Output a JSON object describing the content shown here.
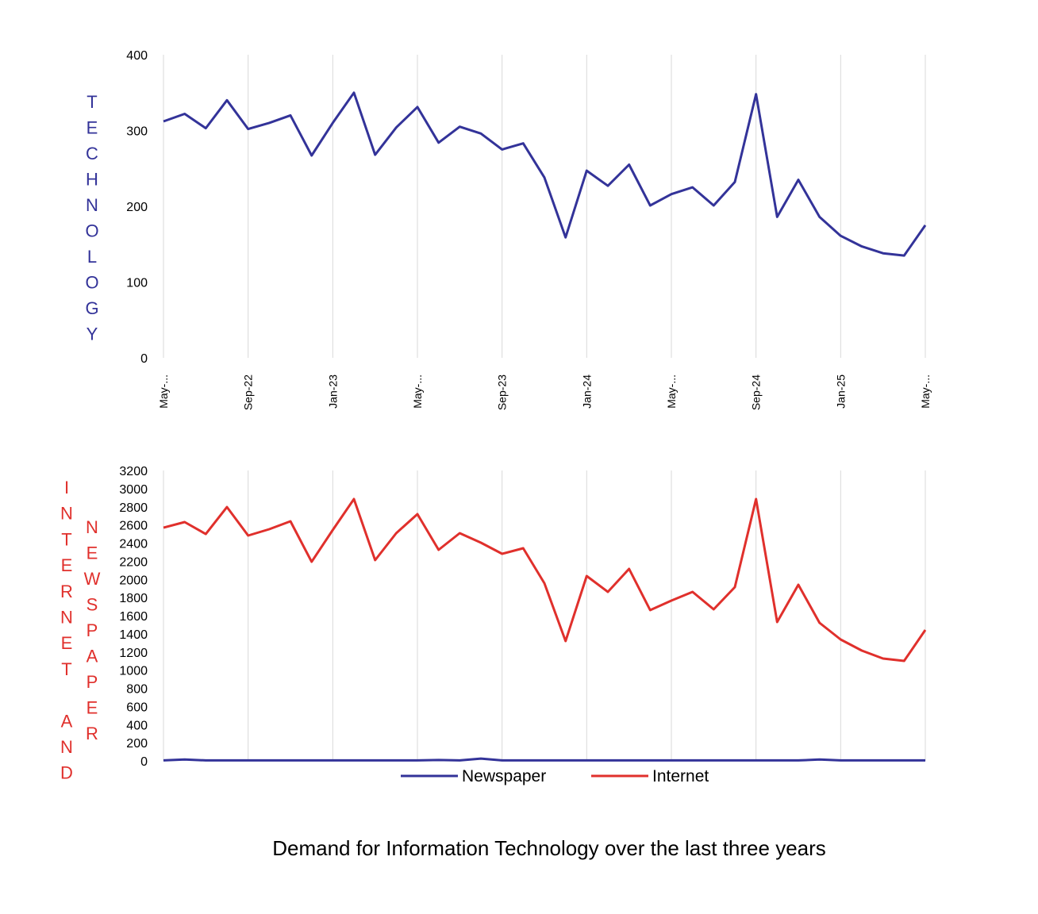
{
  "chart_data": [
    {
      "type": "line",
      "ylabel": "TECHNOLOGY",
      "ylim": [
        0,
        400
      ],
      "yticks": [
        "0",
        "100",
        "200",
        "300",
        "400"
      ],
      "xtick_labels": [
        "May-...",
        "Sep-22",
        "Jan-23",
        "May-...",
        "Sep-23",
        "Jan-24",
        "May-...",
        "Sep-24",
        "Jan-25",
        "May-..."
      ],
      "grid": "vertical",
      "series": [
        {
          "name": "Technology",
          "color": "#333399",
          "values": [
            312,
            322,
            303,
            340,
            302,
            310,
            320,
            267,
            310,
            350,
            268,
            304,
            331,
            284,
            305,
            296,
            275,
            283,
            238,
            159,
            247,
            227,
            255,
            201,
            216,
            225,
            201,
            232,
            348,
            186,
            235,
            186,
            161,
            147,
            138,
            135,
            175
          ]
        }
      ]
    },
    {
      "type": "line",
      "ylabel_outer": "INTERNET AND",
      "ylabel_inner": "NEWSPAPER",
      "ylim": [
        0,
        3200
      ],
      "yticks": [
        "0",
        "200",
        "400",
        "600",
        "800",
        "1000",
        "1200",
        "1400",
        "1600",
        "1800",
        "2000",
        "2200",
        "2400",
        "2600",
        "2800",
        "3000",
        "3200"
      ],
      "grid": "vertical",
      "legend_position": "bottom",
      "series": [
        {
          "name": "Newspaper",
          "color": "#333399",
          "values": [
            5,
            15,
            5,
            5,
            5,
            5,
            5,
            5,
            5,
            5,
            5,
            5,
            5,
            10,
            5,
            25,
            5,
            5,
            5,
            5,
            5,
            5,
            5,
            5,
            5,
            5,
            5,
            5,
            5,
            5,
            5,
            15,
            5,
            5,
            5,
            5,
            5
          ]
        },
        {
          "name": "Internet",
          "color": "#e0302c",
          "values": [
            2570,
            2632,
            2500,
            2797,
            2483,
            2553,
            2640,
            2194,
            2544,
            2885,
            2212,
            2509,
            2719,
            2326,
            2509,
            2404,
            2282,
            2343,
            1958,
            1320,
            2037,
            1862,
            2116,
            1661,
            1766,
            1862,
            1670,
            1915,
            2885,
            1530,
            1941,
            1521,
            1338,
            1215,
            1128,
            1102,
            1443
          ]
        }
      ]
    }
  ],
  "caption": "Demand for Information Technology over the last three years"
}
